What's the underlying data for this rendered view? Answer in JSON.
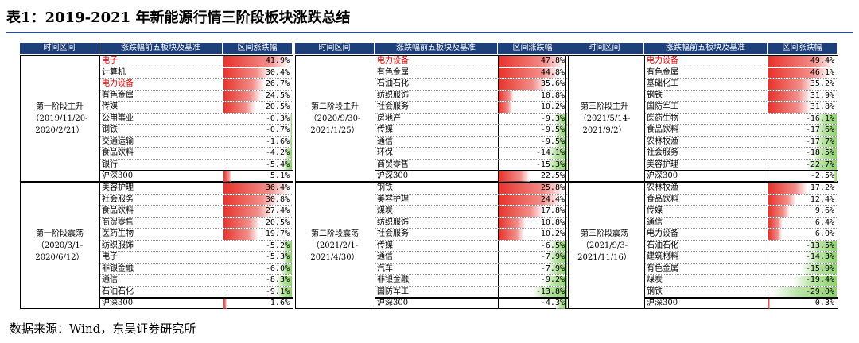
{
  "title": "表1：2019-2021 年新能源行情三阶段板块涨跌总结",
  "source": "数据来源：Wind，东吴证券研究所",
  "headers": [
    "时间区间",
    "涨跌幅前五板块及基准",
    "区间涨跌幅",
    "时间区间",
    "涨跌幅前五板块及基准",
    "区间涨跌幅",
    "时间区间",
    "涨跌幅前五板块及基准",
    "区间涨跌幅"
  ],
  "colors": {
    "header": "#1d3f7a",
    "pos": "#e8322b",
    "neg": "#8fd36f",
    "highlight_text": "#e00000"
  },
  "tables": [
    {
      "period_lines": [
        "第一阶段主升",
        "（2019/11/20-",
        "2020/2/21）"
      ],
      "rows": [
        {
          "name": "电子",
          "value": 41.9,
          "label": "41.9%",
          "hl": true
        },
        {
          "name": "计算机",
          "value": 30.4,
          "label": "30.4%"
        },
        {
          "name": "电力设备",
          "value": 26.7,
          "label": "26.7%",
          "hl": true
        },
        {
          "name": "有色金属",
          "value": 24.5,
          "label": "24.5%"
        },
        {
          "name": "传媒",
          "value": 20.5,
          "label": "20.5%"
        },
        {
          "name": "公用事业",
          "value": -0.3,
          "label": "-0.3%"
        },
        {
          "name": "钢铁",
          "value": -0.7,
          "label": "-0.7%"
        },
        {
          "name": "交通运输",
          "value": -1.6,
          "label": "-1.6%"
        },
        {
          "name": "食品饮料",
          "value": -4.2,
          "label": "-4.2%"
        },
        {
          "name": "银行",
          "value": -5.4,
          "label": "-5.4%"
        },
        {
          "name": "沪深300",
          "value": 5.1,
          "label": "5.1%"
        }
      ]
    },
    {
      "period_lines": [
        "第二阶段主升",
        "（2020/9/30-",
        "2021/1/25）"
      ],
      "rows": [
        {
          "name": "电力设备",
          "value": 47.8,
          "label": "47.8%",
          "hl": true
        },
        {
          "name": "有色金属",
          "value": 44.8,
          "label": "44.8%"
        },
        {
          "name": "石油石化",
          "value": 35.6,
          "label": "35.6%"
        },
        {
          "name": "纺织服饰",
          "value": 10.8,
          "label": "10.8%"
        },
        {
          "name": "社会服务",
          "value": 10.2,
          "label": "10.2%"
        },
        {
          "name": "房地产",
          "value": -9.3,
          "label": "-9.3%"
        },
        {
          "name": "传媒",
          "value": -9.5,
          "label": "-9.5%"
        },
        {
          "name": "通信",
          "value": -9.5,
          "label": "-9.5%"
        },
        {
          "name": "环保",
          "value": -14.1,
          "label": "-14.1%"
        },
        {
          "name": "商贸零售",
          "value": -15.3,
          "label": "-15.3%"
        },
        {
          "name": "沪深300",
          "value": 22.5,
          "label": "22.5%"
        }
      ]
    },
    {
      "period_lines": [
        "第三阶段主升",
        "（2021/5/14-",
        "2021/9/2）"
      ],
      "rows": [
        {
          "name": "电力设备",
          "value": 49.4,
          "label": "49.4%",
          "hl": true
        },
        {
          "name": "有色金属",
          "value": 46.1,
          "label": "46.1%"
        },
        {
          "name": "基础化工",
          "value": 35.2,
          "label": "35.2%"
        },
        {
          "name": "钢铁",
          "value": 31.9,
          "label": "31.9%"
        },
        {
          "name": "国防军工",
          "value": 31.8,
          "label": "31.8%"
        },
        {
          "name": "医药生物",
          "value": -16.1,
          "label": "-16.1%"
        },
        {
          "name": "食品饮料",
          "value": -17.6,
          "label": "-17.6%"
        },
        {
          "name": "农林牧渔",
          "value": -17.7,
          "label": "-17.7%"
        },
        {
          "name": "社会服务",
          "value": -18.5,
          "label": "-18.5%"
        },
        {
          "name": "美容护理",
          "value": -22.7,
          "label": "-22.7%"
        },
        {
          "name": "沪深300",
          "value": -2.5,
          "label": "-2.5%"
        }
      ]
    },
    {
      "period_lines": [
        "第一阶段震荡",
        "（2020/3/1-",
        "2020/6/12）"
      ],
      "rows": [
        {
          "name": "美容护理",
          "value": 36.4,
          "label": "36.4%"
        },
        {
          "name": "社会服务",
          "value": 30.8,
          "label": "30.8%"
        },
        {
          "name": "食品饮料",
          "value": 27.4,
          "label": "27.4%"
        },
        {
          "name": "商贸零售",
          "value": 20.5,
          "label": "20.5%"
        },
        {
          "name": "医药生物",
          "value": 19.7,
          "label": "19.7%"
        },
        {
          "name": "纺织服饰",
          "value": -5.2,
          "label": "-5.2%"
        },
        {
          "name": "电子",
          "value": -5.3,
          "label": "-5.3%"
        },
        {
          "name": "非银金融",
          "value": -6.0,
          "label": "-6.0%"
        },
        {
          "name": "通信",
          "value": -8.3,
          "label": "-8.3%"
        },
        {
          "name": "石油石化",
          "value": -9.1,
          "label": "-9.1%"
        },
        {
          "name": "沪深300",
          "value": 1.6,
          "label": "1.6%"
        }
      ]
    },
    {
      "period_lines": [
        "第二阶段震荡",
        "（2021/2/1-",
        "2021/4/30）"
      ],
      "rows": [
        {
          "name": "钢铁",
          "value": 25.8,
          "label": "25.8%"
        },
        {
          "name": "美容护理",
          "value": 24.4,
          "label": "24.4%"
        },
        {
          "name": "煤炭",
          "value": 17.8,
          "label": "17.8%"
        },
        {
          "name": "纺织服饰",
          "value": 10.8,
          "label": "10.8%"
        },
        {
          "name": "社会服务",
          "value": 10.2,
          "label": "10.2%"
        },
        {
          "name": "传媒",
          "value": -6.5,
          "label": "-6.5%"
        },
        {
          "name": "通信",
          "value": -7.9,
          "label": "-7.9%"
        },
        {
          "name": "汽车",
          "value": -7.9,
          "label": "-7.9%"
        },
        {
          "name": "非银金融",
          "value": -9.2,
          "label": "-9.2%"
        },
        {
          "name": "国防军工",
          "value": -13.8,
          "label": "-13.8%"
        },
        {
          "name": "沪深300",
          "value": -4.3,
          "label": "-4.3%"
        }
      ]
    },
    {
      "period_lines": [
        "第三阶段震荡",
        "（2021/9/3-",
        "2021/11/16）"
      ],
      "rows": [
        {
          "name": "农林牧渔",
          "value": 17.2,
          "label": "17.2%"
        },
        {
          "name": "食品饮料",
          "value": 12.4,
          "label": "12.4%"
        },
        {
          "name": "传媒",
          "value": 9.6,
          "label": "9.6%"
        },
        {
          "name": "通信",
          "value": 6.4,
          "label": "6.4%"
        },
        {
          "name": "电力设备",
          "value": 6.0,
          "label": "6.0%"
        },
        {
          "name": "石油石化",
          "value": -13.5,
          "label": "-13.5%"
        },
        {
          "name": "建筑材料",
          "value": -14.3,
          "label": "-14.3%"
        },
        {
          "name": "有色金属",
          "value": -15.9,
          "label": "-15.9%"
        },
        {
          "name": "煤炭",
          "value": -19.4,
          "label": "-19.4%"
        },
        {
          "name": "钢铁",
          "value": -29.0,
          "label": "-29.0%"
        },
        {
          "name": "沪深300",
          "value": 0.3,
          "label": "0.3%"
        }
      ]
    }
  ]
}
